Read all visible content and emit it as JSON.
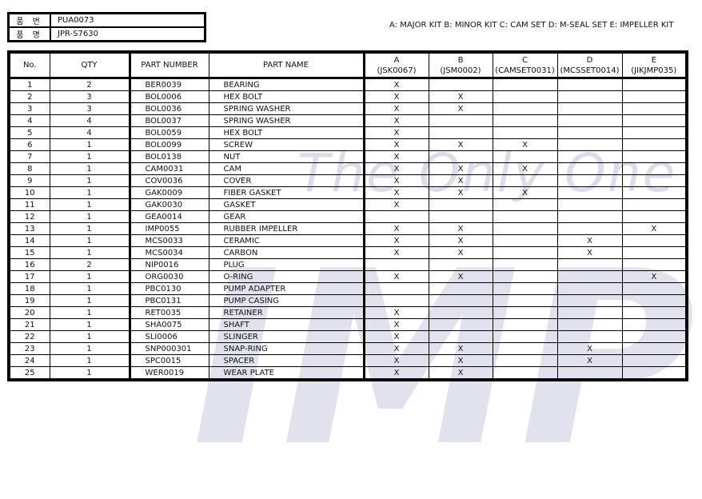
{
  "watermark": {
    "line1": "The Only One",
    "line2": "IMP"
  },
  "info": {
    "part_no_label": "품 번",
    "part_no": "PUA0073",
    "name_label": "품 명",
    "name": "JPR-S7630"
  },
  "legend": "A: MAJOR KIT  B: MINOR KIT  C: CAM SET  D: M-SEAL SET E: IMPELLER KIT",
  "headers": {
    "no": "No.",
    "qty": "QTY",
    "part_number": "PART NUMBER",
    "part_name": "PART NAME",
    "kits": [
      {
        "letter": "A",
        "code": "(JSK0067)"
      },
      {
        "letter": "B",
        "code": "(JSM0002)"
      },
      {
        "letter": "C",
        "code": "(CAMSET0031)"
      },
      {
        "letter": "D",
        "code": "(MCSSET0014)"
      },
      {
        "letter": "E",
        "code": "(JIKJMP035)"
      }
    ]
  },
  "mark": "X",
  "rows": [
    [
      "1",
      "2",
      "BER0039",
      "BEARING",
      "A"
    ],
    [
      "2",
      "3",
      "BOL0006",
      "HEX BOLT",
      "AB"
    ],
    [
      "3",
      "3",
      "BOL0036",
      "SPRING WASHER",
      "AB"
    ],
    [
      "4",
      "4",
      "BOL0037",
      "SPRING WASHER",
      "A"
    ],
    [
      "5",
      "4",
      "BOL0059",
      "HEX BOLT",
      "A"
    ],
    [
      "6",
      "1",
      "BOL0099",
      "SCREW",
      "ABC"
    ],
    [
      "7",
      "1",
      "BOL0138",
      "NUT",
      "A"
    ],
    [
      "8",
      "1",
      "CAM0031",
      "CAM",
      "ABC"
    ],
    [
      "9",
      "1",
      "COV0036",
      "COVER",
      "AB"
    ],
    [
      "10",
      "1",
      "GAK0009",
      "FIBER GASKET",
      "ABC"
    ],
    [
      "11",
      "1",
      "GAK0030",
      "GASKET",
      "A"
    ],
    [
      "12",
      "1",
      "GEA0014",
      "GEAR",
      ""
    ],
    [
      "13",
      "1",
      "IMP0055",
      "RUBBER IMPELLER",
      "ABE"
    ],
    [
      "14",
      "1",
      "MCS0033",
      "CERAMIC",
      "ABD"
    ],
    [
      "15",
      "1",
      "MCS0034",
      "CARBON",
      "ABD"
    ],
    [
      "16",
      "2",
      "NIP0016",
      "PLUG",
      ""
    ],
    [
      "17",
      "1",
      "ORG0030",
      "O-RING",
      "ABE"
    ],
    [
      "18",
      "1",
      "PBC0130",
      "PUMP ADAPTER",
      ""
    ],
    [
      "19",
      "1",
      "PBC0131",
      "PUMP CASING",
      ""
    ],
    [
      "20",
      "1",
      "RET0035",
      "RETAINER",
      "A"
    ],
    [
      "21",
      "1",
      "SHA0075",
      "SHAFT",
      "A"
    ],
    [
      "22",
      "1",
      "SLI0006",
      "SLINGER",
      "A"
    ],
    [
      "23",
      "1",
      "SNP000301",
      "SNAP-RING",
      "ABD"
    ],
    [
      "24",
      "1",
      "SPC0015",
      "SPACER",
      "ABD"
    ],
    [
      "25",
      "1",
      "WER0019",
      "WEAR PLATE",
      "AB"
    ]
  ]
}
